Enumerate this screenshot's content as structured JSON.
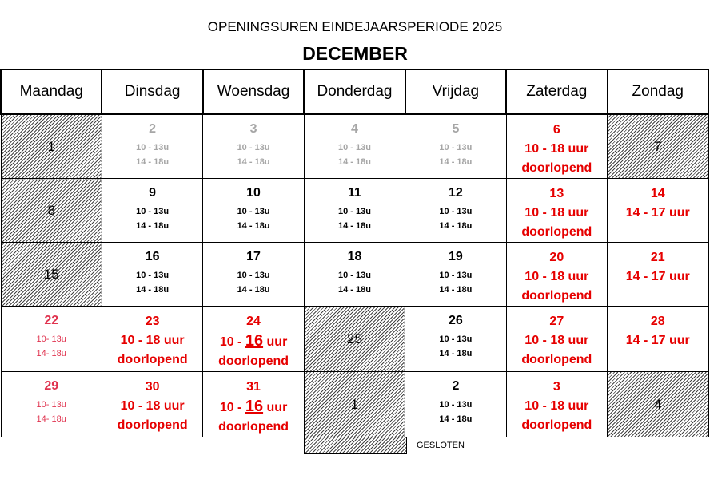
{
  "title": "OPENINGSUREN EINDEJAARSPERIODE 2025",
  "month": "DECEMBER",
  "weekdays": [
    "Maandag",
    "Dinsdag",
    "Woensdag",
    "Donderdag",
    "Vrijdag",
    "Zaterdag",
    "Zondag"
  ],
  "colors": {
    "red": "#e60000",
    "pink": "#e0334f",
    "grey": "#a6a6a6"
  },
  "weeks": [
    [
      {
        "day": "1",
        "style": "closed"
      },
      {
        "day": "2",
        "style": "grey",
        "hours": [
          "10 - 13u",
          "14 - 18u"
        ]
      },
      {
        "day": "3",
        "style": "grey",
        "hours": [
          "10 - 13u",
          "14 - 18u"
        ]
      },
      {
        "day": "4",
        "style": "grey",
        "hours": [
          "10 - 13u",
          "14 - 18u"
        ]
      },
      {
        "day": "5",
        "style": "grey",
        "hours": [
          "10 - 13u",
          "14 - 18u"
        ]
      },
      {
        "day": "6",
        "style": "red",
        "big": [
          "10 - 18 uur",
          "doorlopend"
        ]
      },
      {
        "day": "7",
        "style": "closed"
      }
    ],
    [
      {
        "day": "8",
        "style": "closed"
      },
      {
        "day": "9",
        "style": "black",
        "hours": [
          "10 - 13u",
          "14 - 18u"
        ]
      },
      {
        "day": "10",
        "style": "black",
        "hours": [
          "10 - 13u",
          "14 - 18u"
        ]
      },
      {
        "day": "11",
        "style": "black",
        "hours": [
          "10 - 13u",
          "14 - 18u"
        ]
      },
      {
        "day": "12",
        "style": "black",
        "hours": [
          "10 - 13u",
          "14 - 18u"
        ]
      },
      {
        "day": "13",
        "style": "red",
        "big": [
          "10 - 18 uur",
          "doorlopend"
        ]
      },
      {
        "day": "14",
        "style": "red",
        "big": [
          "14 - 17 uur"
        ]
      }
    ],
    [
      {
        "day": "15",
        "style": "closed"
      },
      {
        "day": "16",
        "style": "black",
        "hours": [
          "10 - 13u",
          "14 - 18u"
        ]
      },
      {
        "day": "17",
        "style": "black",
        "hours": [
          "10 - 13u",
          "14 - 18u"
        ]
      },
      {
        "day": "18",
        "style": "black",
        "hours": [
          "10 - 13u",
          "14 - 18u"
        ]
      },
      {
        "day": "19",
        "style": "black",
        "hours": [
          "10 - 13u",
          "14 - 18u"
        ]
      },
      {
        "day": "20",
        "style": "red",
        "big": [
          "10 - 18 uur",
          "doorlopend"
        ]
      },
      {
        "day": "21",
        "style": "red",
        "big": [
          "14 - 17 uur"
        ]
      }
    ],
    [
      {
        "day": "22",
        "style": "pink",
        "hours": [
          "10- 13u",
          "14- 18u"
        ]
      },
      {
        "day": "23",
        "style": "red",
        "big": [
          "10 - 18 uur",
          "doorlopend"
        ]
      },
      {
        "day": "24",
        "style": "red",
        "emph": {
          "pre": "10 - ",
          "mid": "16",
          "post": " uur"
        },
        "big": [
          "doorlopend"
        ]
      },
      {
        "day": "25",
        "style": "closed"
      },
      {
        "day": "26",
        "style": "black",
        "hours": [
          "10 - 13u",
          "14 - 18u"
        ]
      },
      {
        "day": "27",
        "style": "red",
        "big": [
          "10 - 18 uur",
          "doorlopend"
        ]
      },
      {
        "day": "28",
        "style": "red",
        "big": [
          "14 - 17 uur"
        ]
      }
    ],
    [
      {
        "day": "29",
        "style": "pink",
        "hours": [
          "10- 13u",
          "14- 18u"
        ]
      },
      {
        "day": "30",
        "style": "red",
        "big": [
          "10 - 18 uur",
          "doorlopend"
        ]
      },
      {
        "day": "31",
        "style": "red",
        "emph": {
          "pre": "10 - ",
          "mid": "16",
          "post": " uur"
        },
        "big": [
          "doorlopend"
        ]
      },
      {
        "day": "1",
        "style": "closed"
      },
      {
        "day": "2",
        "style": "black",
        "hours": [
          "10 - 13u",
          "14 - 18u"
        ]
      },
      {
        "day": "3",
        "style": "red",
        "big": [
          "10 - 18 uur",
          "doorlopend"
        ]
      },
      {
        "day": "4",
        "style": "closed"
      }
    ]
  ],
  "legend": {
    "label": "GESLOTEN"
  }
}
